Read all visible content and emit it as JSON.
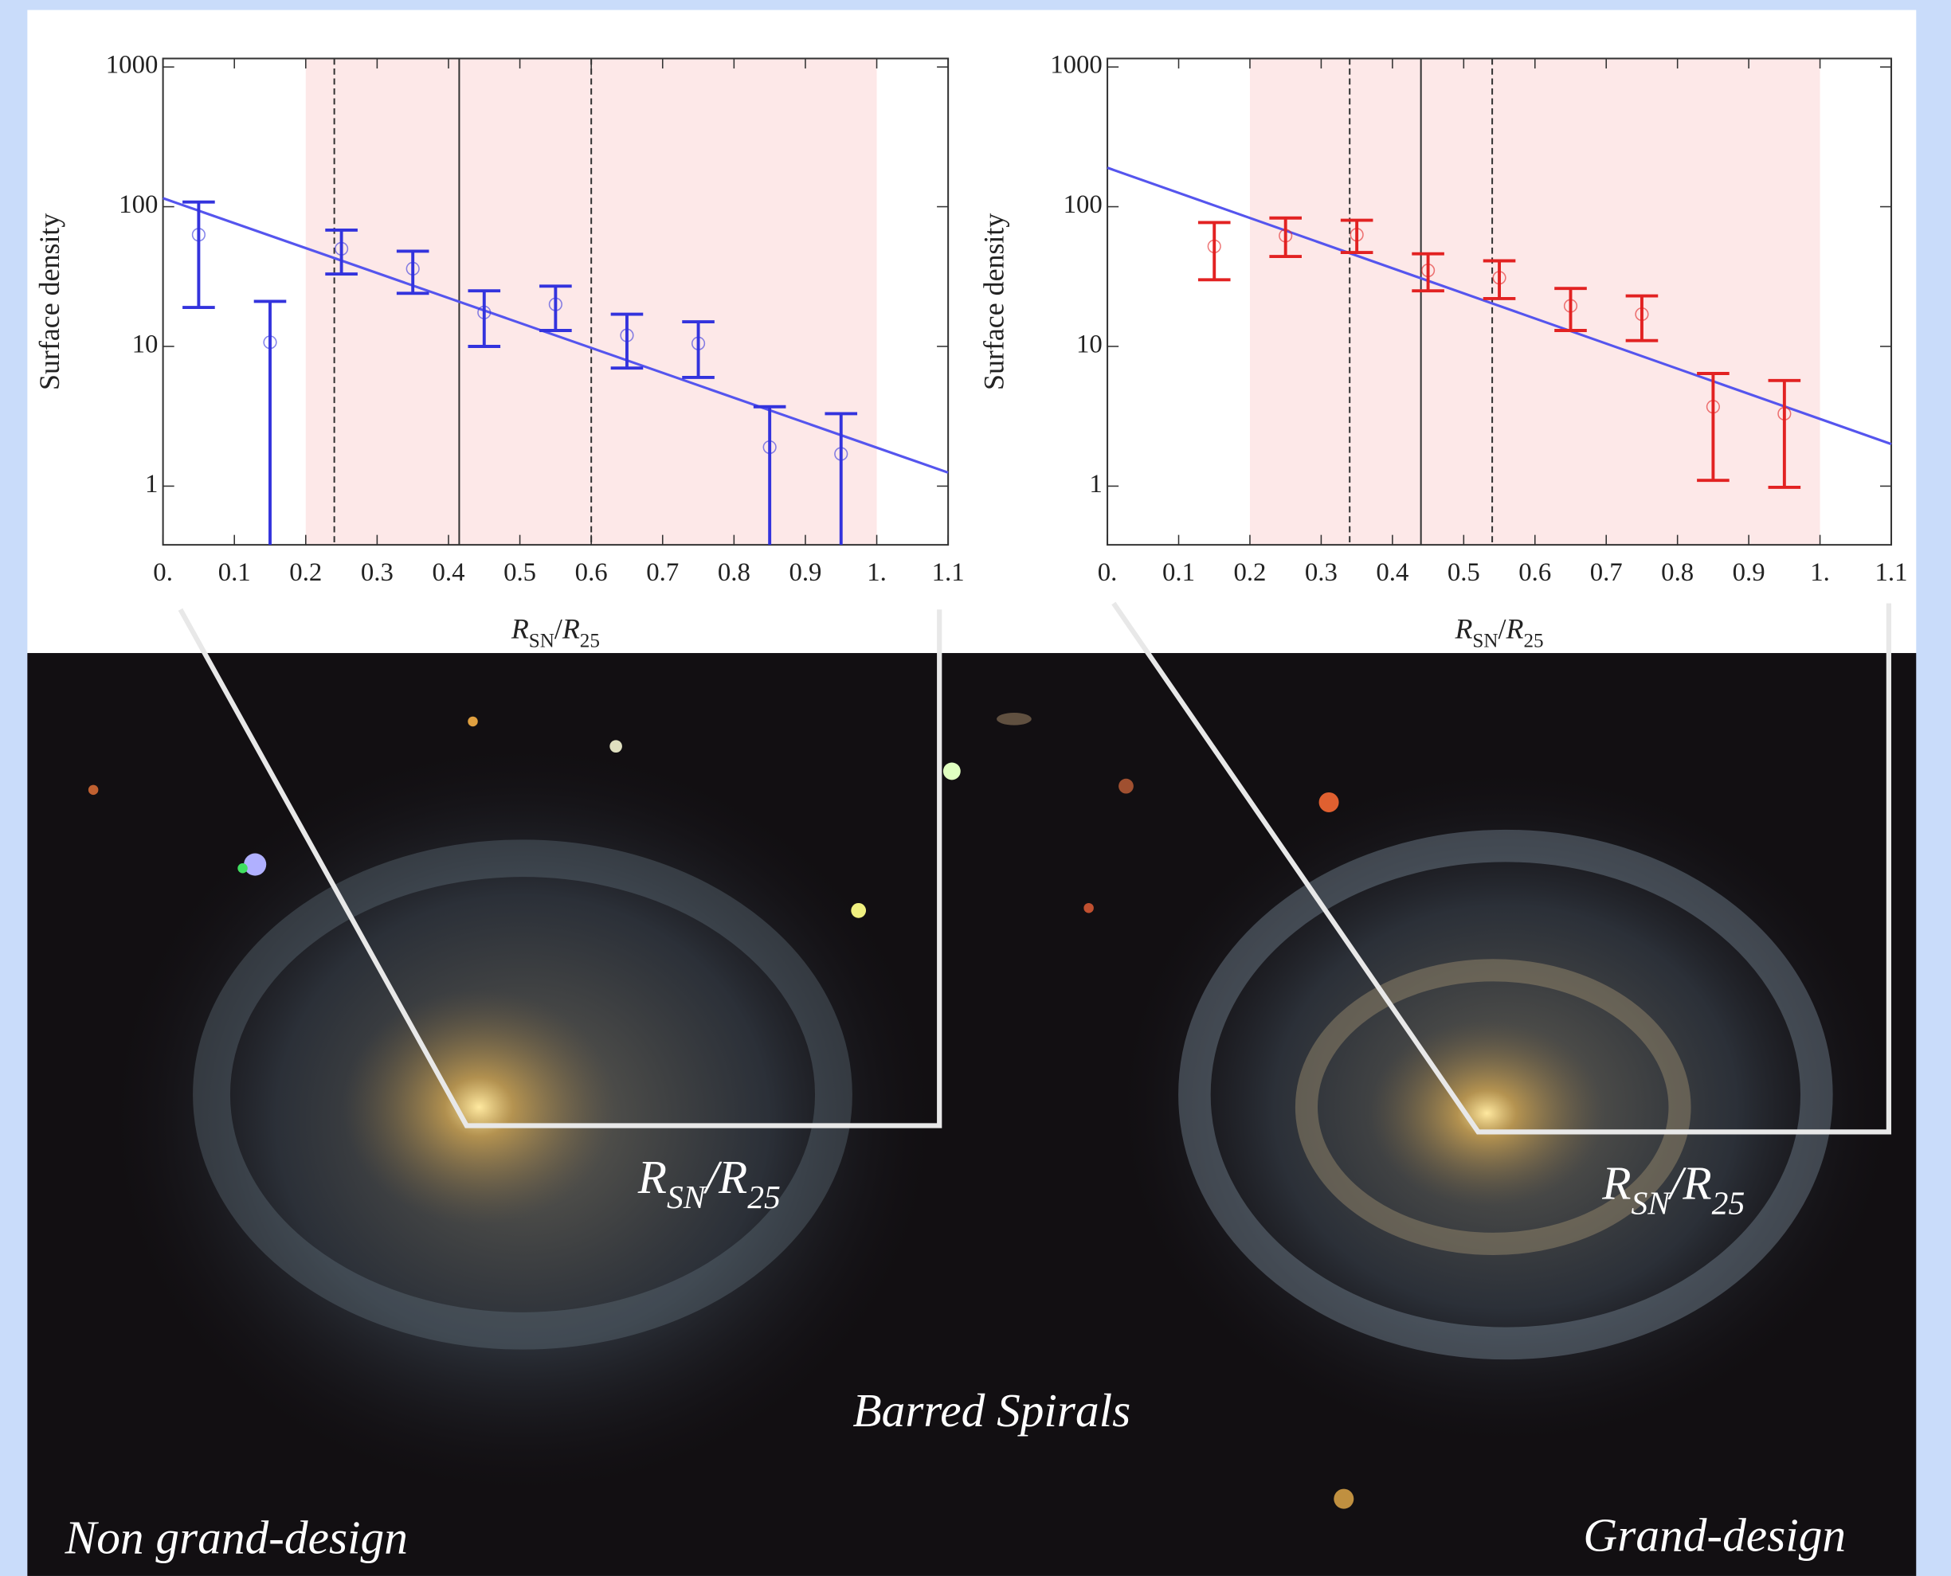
{
  "chart_data": [
    {
      "type": "scatter",
      "log_y": true,
      "xlim": [
        0,
        1.1
      ],
      "ylim": [
        0.38,
        1150
      ],
      "xticks": [
        {
          "value": 0,
          "label": "0."
        },
        0.1,
        0.2,
        0.3,
        0.4,
        0.5,
        0.6,
        0.7,
        0.8,
        0.9,
        {
          "value": 1,
          "label": "1."
        },
        1.1
      ],
      "yticks": [
        1,
        10,
        100,
        1000
      ],
      "ylabel": "Surface density",
      "xlabel": [
        {
          "text": "R",
          "style": "italic"
        },
        {
          "text": "SN",
          "style": "sub"
        },
        {
          "text": "/",
          "style": "normal"
        },
        {
          "text": "R",
          "style": "italic"
        },
        {
          "text": "25",
          "style": "sub"
        }
      ],
      "shaded": {
        "x": [
          0.2,
          1.0
        ],
        "color": "#fde8e8"
      },
      "vlines": [
        {
          "x": 0.24,
          "style": "dashed"
        },
        {
          "x": 0.415,
          "style": "solid"
        },
        {
          "x": 0.6,
          "style": "dashed"
        }
      ],
      "series": [
        {
          "color": "#3333dd",
          "x": [
            0.05,
            0.15,
            0.25,
            0.35,
            0.45,
            0.55,
            0.65,
            0.75,
            0.85,
            0.95
          ],
          "values": [
            63,
            10.7,
            50,
            36,
            17.5,
            20,
            12,
            10.5,
            1.9,
            1.7
          ],
          "upper": [
            108,
            21,
            68,
            48,
            25,
            27,
            17,
            15,
            3.7,
            3.3
          ],
          "lower": [
            19,
            null,
            33,
            24,
            10,
            13,
            7,
            6,
            null,
            null
          ]
        }
      ],
      "fit": {
        "x": [
          0,
          1.1
        ],
        "values": [
          115,
          1.25
        ],
        "color": "#5555ee"
      }
    },
    {
      "type": "scatter",
      "log_y": true,
      "xlim": [
        0,
        1.1
      ],
      "ylim": [
        0.38,
        1150
      ],
      "xticks": [
        {
          "value": 0,
          "label": "0."
        },
        0.1,
        0.2,
        0.3,
        0.4,
        0.5,
        0.6,
        0.7,
        0.8,
        0.9,
        {
          "value": 1,
          "label": "1."
        },
        1.1
      ],
      "yticks": [
        1,
        10,
        100,
        1000
      ],
      "ylabel": "Surface density",
      "xlabel": [
        {
          "text": "R",
          "style": "italic"
        },
        {
          "text": "SN",
          "style": "sub"
        },
        {
          "text": "/",
          "style": "normal"
        },
        {
          "text": "R",
          "style": "italic"
        },
        {
          "text": "25",
          "style": "sub"
        }
      ],
      "shaded": {
        "x": [
          0.2,
          1.0
        ],
        "color": "#fde8e8"
      },
      "vlines": [
        {
          "x": 0.34,
          "style": "dashed"
        },
        {
          "x": 0.44,
          "style": "solid"
        },
        {
          "x": 0.54,
          "style": "dashed"
        }
      ],
      "series": [
        {
          "color": "#e22222",
          "x": [
            0.15,
            0.25,
            0.35,
            0.45,
            0.55,
            0.65,
            0.75,
            0.85,
            0.95
          ],
          "values": [
            52,
            62,
            63,
            35,
            31,
            19.5,
            17,
            3.7,
            3.3
          ],
          "upper": [
            77,
            83,
            80,
            46,
            41,
            26,
            23,
            6.4,
            5.7
          ],
          "lower": [
            30,
            44,
            47,
            25,
            22,
            13,
            11,
            1.1,
            0.98
          ]
        }
      ],
      "fit": {
        "x": [
          0,
          1.1
        ],
        "values": [
          190,
          2.0
        ],
        "color": "#5555ee"
      }
    }
  ],
  "image_labels": {
    "title": "Barred Spirals",
    "left": "Non grand-design",
    "right": "Grand-design",
    "radius": [
      {
        "text": "R",
        "style": "italic"
      },
      {
        "text": "SN",
        "style": "sub"
      },
      {
        "text": "/",
        "style": "normal"
      },
      {
        "text": "R",
        "style": "italic"
      },
      {
        "text": "25",
        "style": "sub"
      }
    ]
  }
}
